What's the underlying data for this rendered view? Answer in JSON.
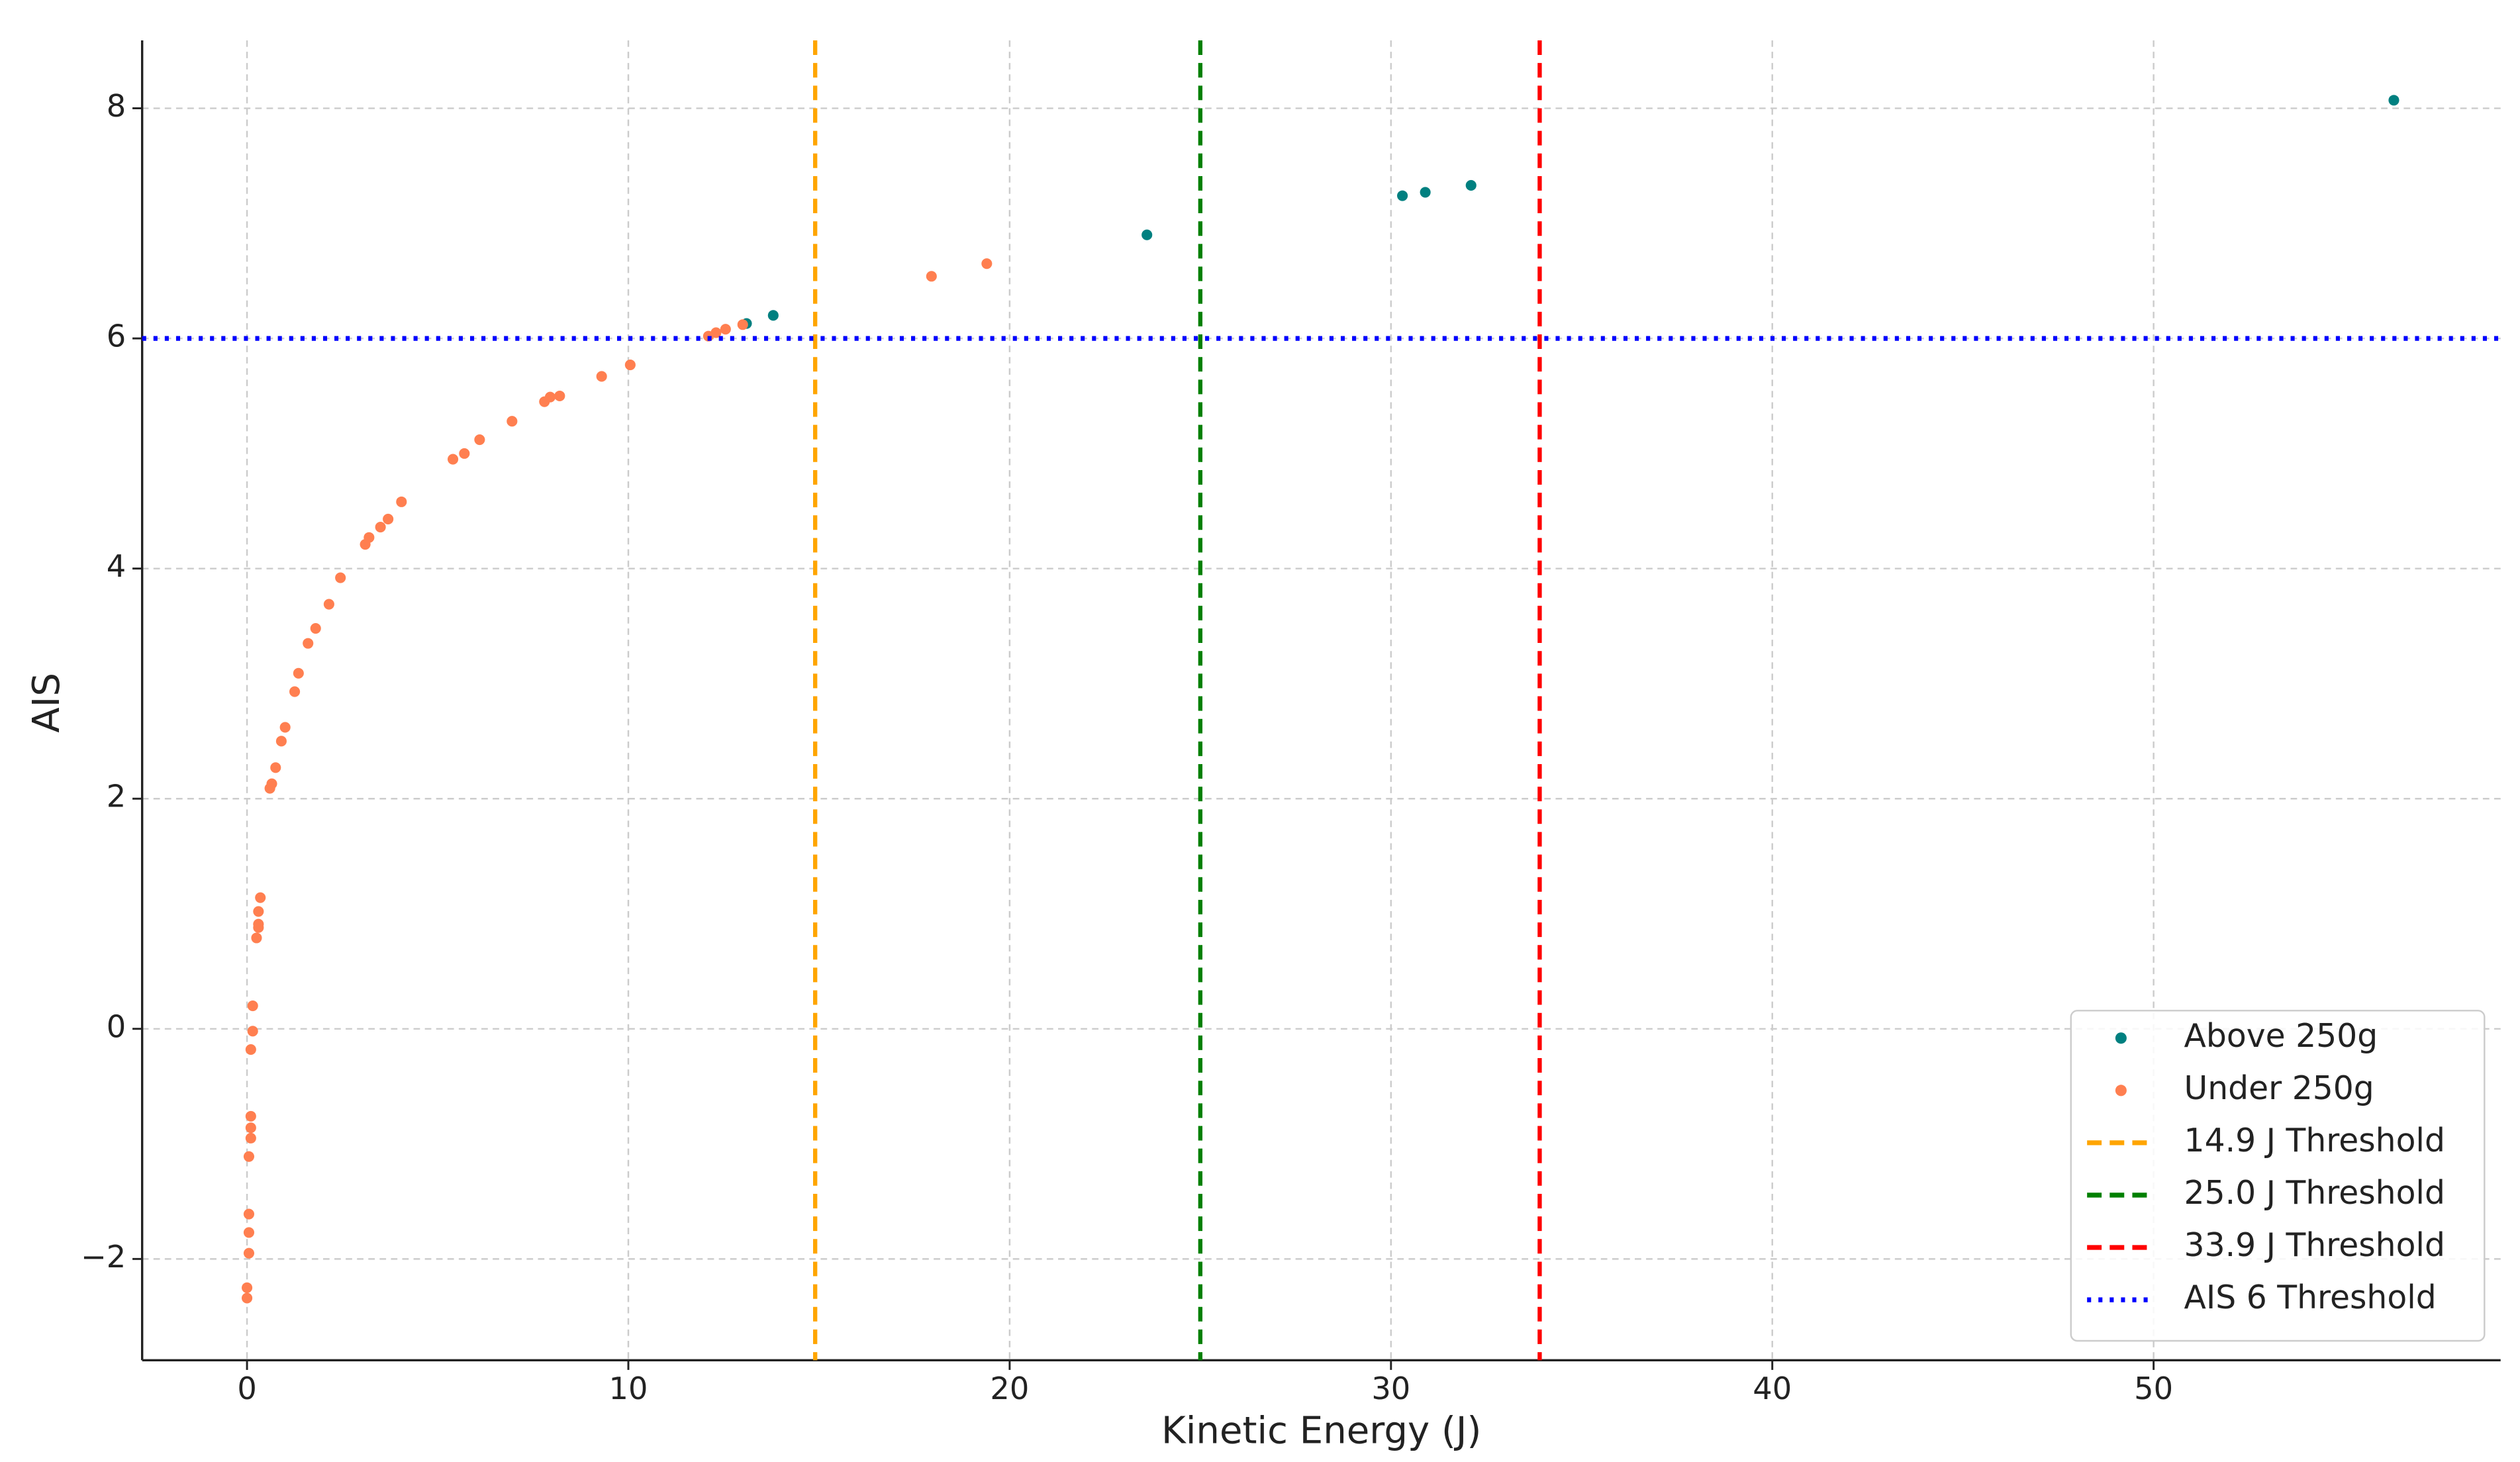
{
  "chart_data": {
    "type": "scatter",
    "xlabel": "Kinetic Energy (J)",
    "ylabel": "AIS",
    "xlim": [
      -2.75,
      59.1
    ],
    "ylim": [
      -2.88,
      8.59
    ],
    "xticks": [
      0,
      10,
      20,
      30,
      40,
      50
    ],
    "yticks": [
      {
        "value": -2,
        "label": "−2"
      },
      0,
      2,
      4,
      6,
      8
    ],
    "grid": true,
    "legend": "lower right",
    "series": [
      {
        "name": "Above 250g",
        "color": "#008080",
        "x": [
          13.1,
          13.8,
          23.6,
          30.3,
          30.9,
          32.1,
          56.3
        ],
        "values": [
          6.13,
          6.2,
          6.9,
          7.24,
          7.27,
          7.33,
          8.07
        ]
      },
      {
        "name": "Under 250g",
        "color": "#ff7f50",
        "x": [
          0.0,
          0.0,
          0.05,
          0.05,
          0.05,
          0.05,
          0.1,
          0.1,
          0.1,
          0.1,
          0.15,
          0.15,
          0.25,
          0.3,
          0.3,
          0.3,
          0.35,
          0.6,
          0.65,
          0.75,
          0.9,
          1.0,
          1.25,
          1.35,
          1.6,
          1.8,
          2.15,
          2.45,
          3.1,
          3.2,
          3.5,
          3.7,
          4.05,
          5.4,
          5.7,
          6.1,
          6.95,
          7.8,
          7.95,
          8.2,
          9.3,
          10.05,
          12.1,
          12.3,
          12.55,
          13.0,
          17.95,
          19.4
        ],
        "values": [
          -2.34,
          -2.25,
          -1.95,
          -1.77,
          -1.61,
          -1.11,
          -0.95,
          -0.86,
          -0.76,
          -0.18,
          -0.02,
          0.2,
          0.79,
          0.88,
          0.91,
          1.02,
          1.14,
          2.09,
          2.13,
          2.27,
          2.5,
          2.62,
          2.93,
          3.09,
          3.35,
          3.48,
          3.69,
          3.92,
          4.21,
          4.27,
          4.36,
          4.43,
          4.58,
          4.95,
          5.0,
          5.12,
          5.28,
          5.45,
          5.49,
          5.5,
          5.67,
          5.77,
          6.02,
          6.05,
          6.08,
          6.12,
          6.54,
          6.65
        ]
      }
    ],
    "vlines": [
      {
        "name": "14.9 J Threshold",
        "x": 14.9,
        "color": "orange",
        "style": "dashed"
      },
      {
        "name": "25.0 J Threshold",
        "x": 25.0,
        "color": "green",
        "style": "dashed"
      },
      {
        "name": "33.9 J Threshold",
        "x": 33.9,
        "color": "red",
        "style": "dashed"
      }
    ],
    "hlines": [
      {
        "name": "AIS 6 Threshold",
        "y": 6,
        "color": "blue",
        "style": "dotted"
      }
    ]
  }
}
